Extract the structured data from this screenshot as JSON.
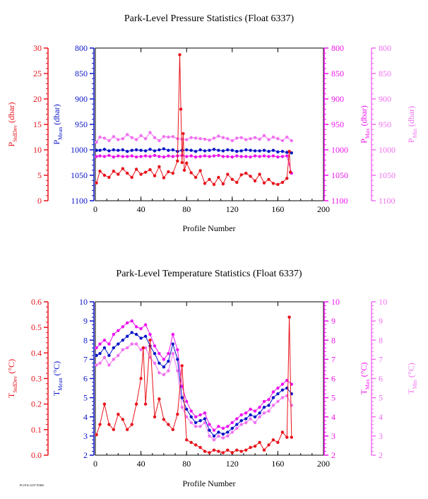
{
  "footer": "PLOT#1 6337 PARK",
  "colors": {
    "stddev": "#e8121b",
    "mean": "#0a14c8",
    "max": "#ee12ee",
    "min": "#f070f0",
    "axis": "#000000"
  },
  "chart_data": [
    {
      "type": "line",
      "title": "Park-Level Pressure Statistics (Float 6337)",
      "xlabel": "Profile Number",
      "xlim": [
        0,
        200
      ],
      "xticks": [
        "0",
        "40",
        "80",
        "120",
        "160",
        "200"
      ],
      "axes": [
        {
          "key": "stddev",
          "label": "P",
          "sub": "StdDev",
          "unit": " (dbar)",
          "ticks": [
            "0",
            "5",
            "10",
            "15",
            "20",
            "25",
            "30"
          ],
          "lim": [
            0,
            30
          ]
        },
        {
          "key": "mean",
          "label": "P",
          "sub": "Mean",
          "unit": " (dbar)",
          "ticks": [
            "800",
            "850",
            "900",
            "950",
            "1000",
            "1050",
            "1100"
          ],
          "lim": [
            1100,
            800
          ]
        },
        {
          "key": "max",
          "label": "P",
          "sub": "Max",
          "unit": " (dbar)",
          "ticks": [
            "800",
            "850",
            "900",
            "950",
            "1000",
            "1050",
            "1100"
          ],
          "lim": [
            1100,
            800
          ]
        },
        {
          "key": "min",
          "label": "P",
          "sub": "Min",
          "unit": " (dbar)",
          "ticks": [
            "800",
            "850",
            "900",
            "950",
            "1000",
            "1050",
            "1100"
          ],
          "lim": [
            1100,
            800
          ]
        }
      ],
      "series": [
        {
          "key": "stddev",
          "x": [
            1,
            4,
            8,
            12,
            16,
            20,
            24,
            28,
            32,
            36,
            40,
            44,
            48,
            52,
            56,
            60,
            64,
            68,
            72,
            74,
            75,
            76,
            77,
            78,
            80,
            84,
            88,
            92,
            96,
            100,
            104,
            108,
            112,
            116,
            120,
            124,
            128,
            132,
            136,
            140,
            144,
            148,
            152,
            156,
            160,
            164,
            168,
            170,
            171
          ],
          "values": [
            3.5,
            5.8,
            5,
            4.6,
            5.8,
            5.2,
            6.3,
            5.4,
            4.6,
            6.2,
            5.2,
            5.6,
            6.1,
            4.9,
            6.7,
            4.5,
            5.7,
            5.4,
            7.8,
            28.7,
            18,
            7.5,
            13.2,
            6,
            7.4,
            5.5,
            4.6,
            5.9,
            3.4,
            4.2,
            3.2,
            4.6,
            3.3,
            5.2,
            4.2,
            3.6,
            5.1,
            5.4,
            4.8,
            3.9,
            5.2,
            3.5,
            4.2,
            3.4,
            3.2,
            3.6,
            4.4,
            9.7,
            5.6
          ]
        },
        {
          "key": "mean",
          "x": [
            1,
            4,
            8,
            12,
            16,
            20,
            24,
            28,
            32,
            36,
            40,
            44,
            48,
            52,
            56,
            60,
            64,
            68,
            72,
            76,
            80,
            84,
            88,
            92,
            96,
            100,
            104,
            108,
            112,
            116,
            120,
            124,
            128,
            132,
            136,
            140,
            144,
            148,
            152,
            156,
            160,
            164,
            168,
            172
          ],
          "values": [
            1001,
            1001,
            999,
            1002,
            1000,
            1001,
            1000,
            1003,
            1001,
            1000,
            1001,
            1002,
            999,
            1002,
            1000,
            998,
            1001,
            1000,
            1003,
            1001,
            1000,
            1001,
            1003,
            1000,
            1002,
            1001,
            999,
            1001,
            1002,
            1000,
            1001,
            1003,
            1002,
            1000,
            1001,
            1002,
            1002,
            1001,
            1003,
            1001,
            1004,
            1003,
            1005,
            1006
          ]
        },
        {
          "key": "max",
          "x": [
            1,
            4,
            8,
            12,
            16,
            20,
            24,
            28,
            32,
            36,
            40,
            44,
            48,
            52,
            56,
            60,
            64,
            68,
            72,
            76,
            80,
            84,
            88,
            92,
            96,
            100,
            104,
            108,
            112,
            116,
            120,
            124,
            128,
            132,
            136,
            140,
            144,
            148,
            152,
            156,
            160,
            164,
            168,
            172
          ],
          "values": [
            1013,
            1012,
            1013,
            1011,
            1014,
            1012,
            1013,
            1013,
            1012,
            1014,
            1013,
            1012,
            1013,
            1011,
            1013,
            1014,
            1012,
            1013,
            1012,
            1011,
            1013,
            1012,
            1014,
            1013,
            1012,
            1013,
            1012,
            1011,
            1013,
            1013,
            1014,
            1012,
            1013,
            1013,
            1014,
            1012,
            1013,
            1012,
            1013,
            1012,
            1014,
            1013,
            1012,
            1046
          ]
        },
        {
          "key": "min",
          "x": [
            1,
            4,
            8,
            12,
            16,
            20,
            24,
            28,
            32,
            36,
            40,
            44,
            48,
            52,
            56,
            60,
            64,
            68,
            72,
            76,
            80,
            84,
            88,
            92,
            96,
            100,
            104,
            108,
            112,
            116,
            120,
            124,
            128,
            132,
            136,
            140,
            144,
            148,
            152,
            156,
            160,
            164,
            168,
            172
          ],
          "values": [
            985,
            975,
            977,
            982,
            974,
            980,
            978,
            970,
            976,
            980,
            972,
            978,
            966,
            976,
            982,
            974,
            975,
            974,
            978,
            979,
            980,
            976,
            977,
            978,
            979,
            981,
            977,
            973,
            976,
            978,
            982,
            977,
            976,
            980,
            978,
            976,
            979,
            972,
            980,
            975,
            978,
            982,
            975,
            982
          ]
        }
      ]
    },
    {
      "type": "line",
      "title": "Park-Level Temperature Statistics (Float 6337)",
      "xlabel": "Profile Number",
      "xlim": [
        0,
        200
      ],
      "xticks": [
        "0",
        "40",
        "80",
        "120",
        "160",
        "200"
      ],
      "axes": [
        {
          "key": "stddev",
          "label": "T",
          "sub": "StdDev",
          "unit": " (°C)",
          "ticks": [
            "0.0",
            "0.1",
            "0.2",
            "0.3",
            "0.4",
            "0.5",
            "0.6"
          ],
          "lim": [
            0,
            0.6
          ]
        },
        {
          "key": "mean",
          "label": "T",
          "sub": "Mean",
          "unit": " (°C)",
          "ticks": [
            "2",
            "3",
            "4",
            "5",
            "6",
            "7",
            "8",
            "9",
            "10"
          ],
          "lim": [
            2,
            10
          ]
        },
        {
          "key": "max",
          "label": "T",
          "sub": "Max",
          "unit": " (°C)",
          "ticks": [
            "2",
            "3",
            "4",
            "5",
            "6",
            "7",
            "8",
            "9",
            "10"
          ],
          "lim": [
            2,
            10
          ]
        },
        {
          "key": "min",
          "label": "T",
          "sub": "Min",
          "unit": " (°C)",
          "ticks": [
            "2",
            "3",
            "4",
            "5",
            "6",
            "7",
            "8",
            "9",
            "10"
          ],
          "lim": [
            2,
            10
          ]
        }
      ],
      "series": [
        {
          "key": "stddev",
          "x": [
            1,
            4,
            8,
            12,
            16,
            20,
            24,
            28,
            32,
            36,
            40,
            42,
            44,
            48,
            52,
            56,
            60,
            64,
            68,
            72,
            76,
            80,
            84,
            88,
            92,
            96,
            100,
            104,
            108,
            112,
            116,
            120,
            124,
            128,
            132,
            136,
            140,
            144,
            148,
            152,
            156,
            160,
            164,
            168,
            170,
            172
          ],
          "values": [
            0.08,
            0.12,
            0.2,
            0.12,
            0.1,
            0.16,
            0.14,
            0.1,
            0.12,
            0.2,
            0.3,
            0.42,
            0.2,
            0.45,
            0.15,
            0.22,
            0.14,
            0.12,
            0.1,
            0.16,
            0.35,
            0.06,
            0.05,
            0.04,
            0.03,
            0.015,
            0.01,
            0.02,
            0.015,
            0.01,
            0.02,
            0.01,
            0.02,
            0.015,
            0.02,
            0.03,
            0.035,
            0.05,
            0.02,
            0.04,
            0.06,
            0.05,
            0.09,
            0.07,
            0.54,
            0.07
          ]
        },
        {
          "key": "mean",
          "x": [
            1,
            4,
            8,
            12,
            16,
            20,
            24,
            28,
            32,
            36,
            40,
            44,
            48,
            52,
            56,
            60,
            64,
            68,
            72,
            76,
            80,
            84,
            88,
            92,
            96,
            100,
            104,
            108,
            112,
            116,
            120,
            124,
            128,
            132,
            136,
            140,
            144,
            148,
            152,
            156,
            160,
            164,
            168,
            172
          ],
          "values": [
            7.2,
            7.3,
            7.6,
            7.2,
            7.6,
            7.8,
            8.0,
            8.2,
            8.4,
            8.3,
            8.1,
            8.2,
            7.7,
            7.3,
            6.8,
            6.6,
            6.9,
            7.8,
            7.0,
            5.0,
            4.4,
            4.0,
            3.7,
            3.8,
            3.9,
            3.3,
            3.0,
            3.2,
            3.1,
            3.2,
            3.4,
            3.6,
            3.8,
            3.9,
            4.1,
            4.0,
            4.2,
            4.5,
            4.6,
            5.0,
            5.2,
            5.4,
            5.5,
            5.2
          ]
        },
        {
          "key": "max",
          "x": [
            1,
            4,
            8,
            12,
            16,
            20,
            24,
            28,
            32,
            36,
            40,
            44,
            48,
            52,
            56,
            60,
            64,
            68,
            72,
            76,
            80,
            84,
            88,
            92,
            96,
            100,
            104,
            108,
            112,
            116,
            120,
            124,
            128,
            132,
            136,
            140,
            144,
            148,
            152,
            156,
            160,
            164,
            168,
            172
          ],
          "values": [
            7.6,
            7.8,
            8.0,
            7.8,
            8.3,
            8.5,
            8.7,
            8.9,
            9.0,
            8.7,
            8.6,
            8.8,
            8.3,
            7.7,
            7.3,
            7.0,
            7.3,
            8.3,
            7.5,
            5.6,
            4.8,
            4.3,
            4.0,
            4.1,
            4.2,
            3.6,
            3.3,
            3.5,
            3.4,
            3.5,
            3.7,
            3.9,
            4.1,
            4.2,
            4.4,
            4.3,
            4.5,
            4.8,
            4.9,
            5.3,
            5.5,
            5.7,
            5.9,
            5.7
          ]
        },
        {
          "key": "min",
          "x": [
            1,
            4,
            8,
            12,
            16,
            20,
            24,
            28,
            32,
            36,
            40,
            44,
            48,
            52,
            56,
            60,
            64,
            68,
            72,
            76,
            80,
            84,
            88,
            92,
            96,
            100,
            104,
            108,
            112,
            116,
            120,
            124,
            128,
            132,
            136,
            140,
            144,
            148,
            152,
            156,
            160,
            164,
            168,
            172
          ],
          "values": [
            6.7,
            6.8,
            7.1,
            6.7,
            7.0,
            7.2,
            7.5,
            7.6,
            7.8,
            7.8,
            7.5,
            7.6,
            7.1,
            6.8,
            6.3,
            6.2,
            6.4,
            7.3,
            6.4,
            4.5,
            4.0,
            3.7,
            3.5,
            3.5,
            3.7,
            3.0,
            2.8,
            3.0,
            2.9,
            3.0,
            3.2,
            3.4,
            3.6,
            3.7,
            3.9,
            3.7,
            4.0,
            4.2,
            4.3,
            4.6,
            4.8,
            5.0,
            5.1,
            4.6
          ]
        }
      ]
    }
  ]
}
